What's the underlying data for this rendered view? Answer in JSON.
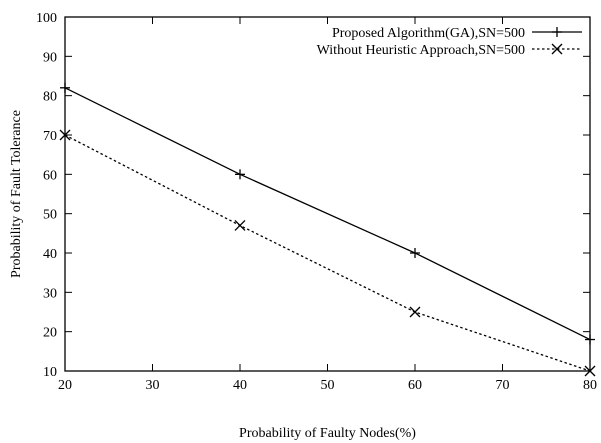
{
  "chart_data": {
    "type": "line",
    "xlabel": "Probability of Faulty Nodes(%)",
    "ylabel": "Probability of Fault Tolerance",
    "xlim": [
      20,
      80
    ],
    "ylim": [
      10,
      100
    ],
    "x_ticks": [
      20,
      30,
      40,
      50,
      60,
      70,
      80
    ],
    "y_ticks": [
      10,
      20,
      30,
      40,
      50,
      60,
      70,
      80,
      90,
      100
    ],
    "grid": false,
    "legend_position": "top-right",
    "series": [
      {
        "name": "Proposed Algorithm(GA),SN=500",
        "marker": "plus",
        "line_style": "solid",
        "color": "#000000",
        "x": [
          20,
          40,
          60,
          80
        ],
        "y": [
          82,
          60,
          40,
          18
        ]
      },
      {
        "name": "Without Heuristic Approach,SN=500",
        "marker": "x",
        "line_style": "dotted",
        "color": "#000000",
        "x": [
          20,
          40,
          60,
          80
        ],
        "y": [
          70,
          47,
          25,
          10
        ]
      }
    ]
  }
}
